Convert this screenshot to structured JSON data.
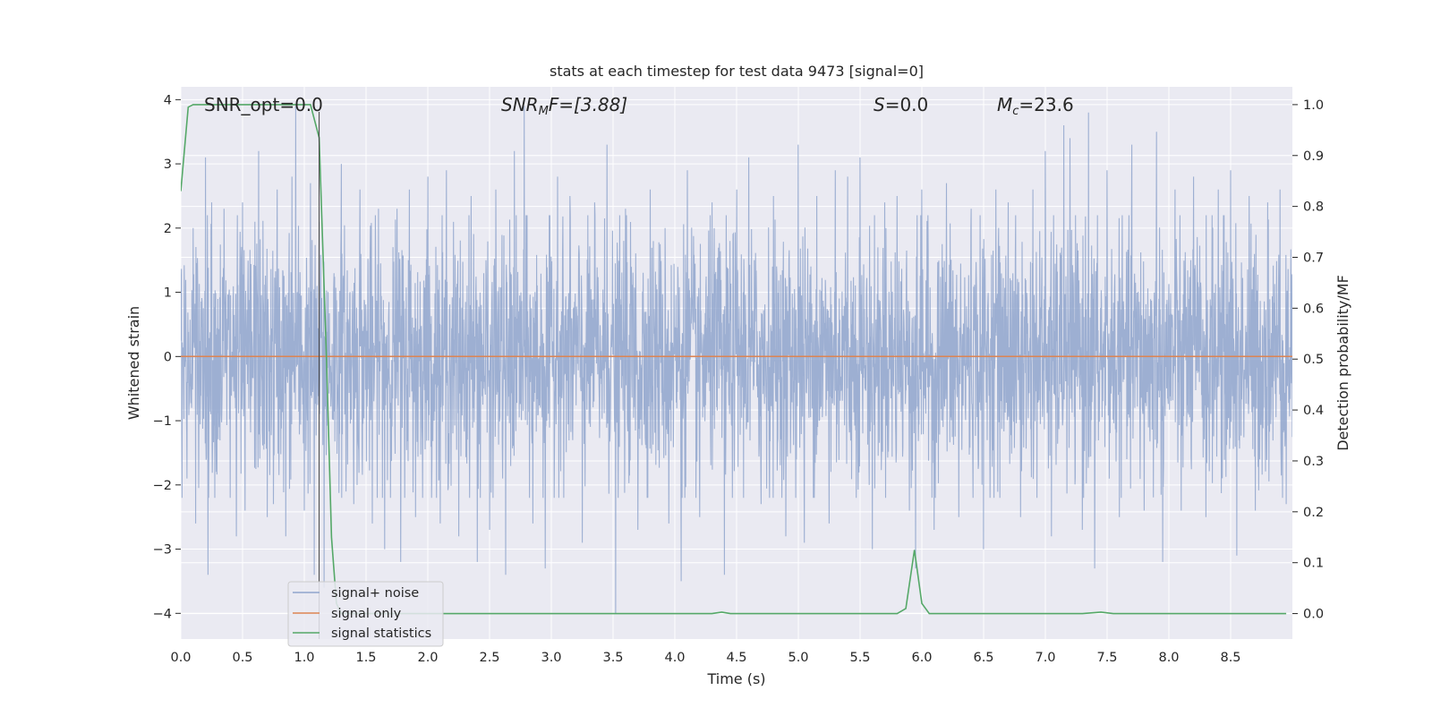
{
  "chart_data": {
    "type": "line",
    "title": "stats at each timestep for test data 9473 [signal=0]",
    "xlabel": "Time (s)",
    "ylabel": "Whitened strain",
    "y2label": "Detection probability/MF",
    "xlim": [
      0,
      9.0
    ],
    "ylim": [
      -4.4,
      4.2
    ],
    "y2lim": [
      -0.05,
      1.035
    ],
    "xticks": [
      0.0,
      0.5,
      1.0,
      1.5,
      2.0,
      2.5,
      3.0,
      3.5,
      4.0,
      4.5,
      5.0,
      5.5,
      6.0,
      6.5,
      7.0,
      7.5,
      8.0,
      8.5
    ],
    "xtick_labels": [
      "0.0",
      "0.5",
      "1.0",
      "1.5",
      "2.0",
      "2.5",
      "3.0",
      "3.5",
      "4.0",
      "4.5",
      "5.0",
      "5.5",
      "6.0",
      "6.5",
      "7.0",
      "7.5",
      "8.0",
      "8.5"
    ],
    "yticks": [
      -4,
      -3,
      -2,
      -1,
      0,
      1,
      2,
      3,
      4
    ],
    "ytick_labels": [
      "−4",
      "−3",
      "−2",
      "−1",
      "0",
      "1",
      "2",
      "3",
      "4"
    ],
    "y2ticks": [
      0.0,
      0.1,
      0.2,
      0.3,
      0.4,
      0.5,
      0.6,
      0.7,
      0.8,
      0.9,
      1.0
    ],
    "y2tick_labels": [
      "0.0",
      "0.1",
      "0.2",
      "0.3",
      "0.4",
      "0.5",
      "0.6",
      "0.7",
      "0.8",
      "0.9",
      "1.0"
    ],
    "grid": true,
    "legend_position": "lower-left",
    "annotations": {
      "snr_opt": "SNR_opt=0.0",
      "snr_mf_base": "SNR",
      "snr_mf_sub": "M",
      "snr_mf_rest": "F=[3.88]",
      "s_italic": "S",
      "s_rest": "=0.0",
      "mc_italic": "M",
      "mc_sub": "c",
      "mc_rest": "=23.6"
    },
    "marker_line_x": 1.12,
    "series": [
      {
        "name": "signal+ noise",
        "color": "#8fa4cc",
        "axis": "left",
        "kind": "noise",
        "amplitude": 0.95,
        "outliers": [
          [
            0.05,
            -1.9
          ],
          [
            0.1,
            2.0
          ],
          [
            0.12,
            -2.6
          ],
          [
            0.2,
            3.1
          ],
          [
            0.22,
            -3.4
          ],
          [
            0.25,
            2.4
          ],
          [
            0.35,
            2.3
          ],
          [
            0.4,
            -2.2
          ],
          [
            0.45,
            -2.8
          ],
          [
            0.5,
            2.4
          ],
          [
            0.52,
            -2.4
          ],
          [
            0.6,
            2.1
          ],
          [
            0.63,
            3.2
          ],
          [
            0.7,
            -2.5
          ],
          [
            0.75,
            -2.3
          ],
          [
            0.78,
            2.6
          ],
          [
            0.85,
            -2.8
          ],
          [
            0.9,
            2.8
          ],
          [
            0.93,
            3.9
          ],
          [
            1.0,
            -2.4
          ],
          [
            1.05,
            2.7
          ],
          [
            1.08,
            -3.4
          ],
          [
            1.12,
            2.1
          ],
          [
            1.16,
            -3.6
          ],
          [
            1.3,
            3.0
          ],
          [
            1.4,
            -2.3
          ],
          [
            1.45,
            2.6
          ],
          [
            1.55,
            -2.6
          ],
          [
            1.6,
            2.3
          ],
          [
            1.65,
            -3.0
          ],
          [
            1.75,
            2.3
          ],
          [
            1.78,
            -3.2
          ],
          [
            1.85,
            2.6
          ],
          [
            1.9,
            -2.5
          ],
          [
            2.0,
            2.8
          ],
          [
            2.1,
            -2.6
          ],
          [
            2.15,
            2.9
          ],
          [
            2.25,
            -2.8
          ],
          [
            2.35,
            2.5
          ],
          [
            2.4,
            -3.2
          ],
          [
            2.5,
            -2.7
          ],
          [
            2.55,
            2.6
          ],
          [
            2.63,
            -3.4
          ],
          [
            2.7,
            3.2
          ],
          [
            2.78,
            3.9
          ],
          [
            2.85,
            -2.6
          ],
          [
            2.95,
            -3.3
          ],
          [
            3.05,
            2.8
          ],
          [
            3.15,
            2.5
          ],
          [
            3.25,
            -2.9
          ],
          [
            3.35,
            2.4
          ],
          [
            3.45,
            3.3
          ],
          [
            3.52,
            -4.0
          ],
          [
            3.6,
            2.3
          ],
          [
            3.7,
            -2.7
          ],
          [
            3.8,
            2.6
          ],
          [
            3.95,
            -2.6
          ],
          [
            4.05,
            -3.5
          ],
          [
            4.1,
            2.9
          ],
          [
            4.2,
            -2.5
          ],
          [
            4.3,
            2.4
          ],
          [
            4.4,
            -3.4
          ],
          [
            4.5,
            2.6
          ],
          [
            4.6,
            3.1
          ],
          [
            4.7,
            -2.3
          ],
          [
            4.8,
            2.5
          ],
          [
            4.9,
            -2.8
          ],
          [
            5.0,
            3.3
          ],
          [
            5.05,
            -2.9
          ],
          [
            5.15,
            2.5
          ],
          [
            5.25,
            -2.6
          ],
          [
            5.3,
            2.9
          ],
          [
            5.4,
            2.8
          ],
          [
            5.5,
            3.1
          ],
          [
            5.6,
            -3.0
          ],
          [
            5.7,
            2.4
          ],
          [
            5.8,
            2.5
          ],
          [
            5.9,
            -2.4
          ],
          [
            5.95,
            -3.3
          ],
          [
            6.0,
            2.6
          ],
          [
            6.1,
            -2.7
          ],
          [
            6.2,
            2.7
          ],
          [
            6.3,
            -2.5
          ],
          [
            6.4,
            2.3
          ],
          [
            6.5,
            -3.0
          ],
          [
            6.6,
            2.6
          ],
          [
            6.7,
            2.4
          ],
          [
            6.8,
            -2.5
          ],
          [
            6.9,
            2.6
          ],
          [
            7.0,
            3.2
          ],
          [
            7.05,
            -2.8
          ],
          [
            7.15,
            3.6
          ],
          [
            7.2,
            3.4
          ],
          [
            7.3,
            -2.7
          ],
          [
            7.35,
            3.8
          ],
          [
            7.4,
            -3.3
          ],
          [
            7.5,
            2.9
          ],
          [
            7.6,
            -2.5
          ],
          [
            7.7,
            3.3
          ],
          [
            7.8,
            -2.4
          ],
          [
            7.9,
            3.5
          ],
          [
            7.95,
            -3.2
          ],
          [
            8.05,
            2.6
          ],
          [
            8.1,
            -2.4
          ],
          [
            8.2,
            2.8
          ],
          [
            8.3,
            -2.5
          ],
          [
            8.4,
            2.6
          ],
          [
            8.5,
            2.9
          ],
          [
            8.55,
            -3.1
          ],
          [
            8.65,
            2.5
          ],
          [
            8.7,
            -2.4
          ],
          [
            8.8,
            2.4
          ],
          [
            8.9,
            2.6
          ],
          [
            8.95,
            -2.3
          ]
        ]
      },
      {
        "name": "signal only",
        "color": "#dd8452",
        "axis": "left",
        "x": [
          0.0,
          9.0
        ],
        "values": [
          0.0,
          0.0
        ]
      },
      {
        "name": "signal statistics",
        "color": "#55a868",
        "axis": "right",
        "x": [
          0.0,
          0.06,
          0.1,
          0.2,
          0.5,
          0.8,
          1.05,
          1.12,
          1.18,
          1.22,
          1.26,
          1.3,
          2.0,
          3.0,
          4.0,
          4.3,
          4.38,
          4.45,
          5.0,
          5.5,
          5.8,
          5.87,
          5.94,
          6.0,
          6.06,
          6.5,
          7.0,
          7.3,
          7.45,
          7.55,
          8.0,
          8.95
        ],
        "values": [
          0.83,
          0.995,
          1.0,
          1.0,
          1.0,
          1.0,
          1.0,
          0.935,
          0.5,
          0.15,
          0.02,
          0.0,
          0.0,
          0.0,
          0.0,
          0.0,
          0.003,
          0.0,
          0.0,
          0.0,
          0.0,
          0.01,
          0.125,
          0.02,
          0.0,
          0.0,
          0.0,
          0.0,
          0.003,
          0.0,
          0.0,
          0.0
        ]
      }
    ]
  }
}
